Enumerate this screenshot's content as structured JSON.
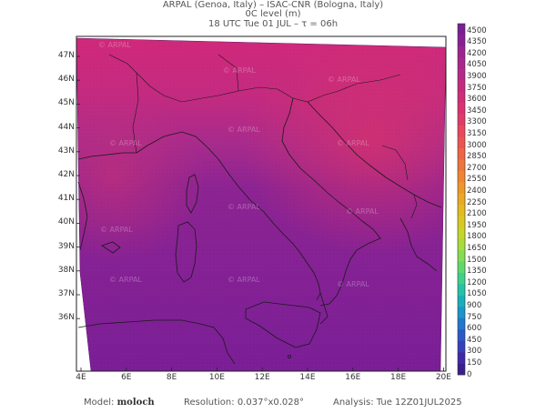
{
  "header": {
    "line1": "ARPAL (Genoa, Italy)  –  ISAC-CNR (Bologna, Italy)",
    "line2": "0C level (m)",
    "line3": "18 UTC Tue 01 JUL  –  τ = 06h"
  },
  "map": {
    "lat_labels": [
      "47N",
      "46N",
      "45N",
      "44N",
      "43N",
      "42N",
      "41N",
      "40N",
      "39N",
      "38N",
      "37N",
      "36N"
    ],
    "lon_labels": [
      "4E",
      "6E",
      "8E",
      "10E",
      "12E",
      "14E",
      "16E",
      "18E",
      "20E"
    ],
    "watermark": "© ARPAL",
    "colors": {
      "north": "#c8267a",
      "mid": "#a0268c",
      "south": "#7a1e96",
      "outside": "#ffffff"
    }
  },
  "colorbar": {
    "labels": [
      "4500",
      "4350",
      "4200",
      "4050",
      "3900",
      "3750",
      "3600",
      "3450",
      "3300",
      "3150",
      "3000",
      "2850",
      "2700",
      "2550",
      "2400",
      "2250",
      "2100",
      "1950",
      "1800",
      "1650",
      "1500",
      "1350",
      "1200",
      "1050",
      "900",
      "750",
      "600",
      "450",
      "300",
      "150",
      "0"
    ],
    "colors": [
      "#7a1e96",
      "#8a1f93",
      "#9b2390",
      "#aa268c",
      "#b82887",
      "#c42a80",
      "#d02c78",
      "#da3270",
      "#e23a68",
      "#e8475c",
      "#ec5450",
      "#ee6446",
      "#ef743c",
      "#ef8532",
      "#ee972a",
      "#eaa924",
      "#e3ba20",
      "#d7c922",
      "#c5d52a",
      "#a9dc3a",
      "#84dd52",
      "#5fd96c",
      "#3fd08a",
      "#26c2a6",
      "#1aaebc",
      "#1a96c8",
      "#2178cc",
      "#2b5ac8",
      "#3640bc",
      "#3e2aa8",
      "#3c1d8e"
    ]
  },
  "footer": {
    "model_label": "Model:",
    "model_name": "moloch",
    "resolution_label": "Resolution:",
    "resolution_value": "0.037°x0.028°",
    "analysis_label": "Analysis:",
    "analysis_value": "Tue 12Z01JUL2025"
  }
}
